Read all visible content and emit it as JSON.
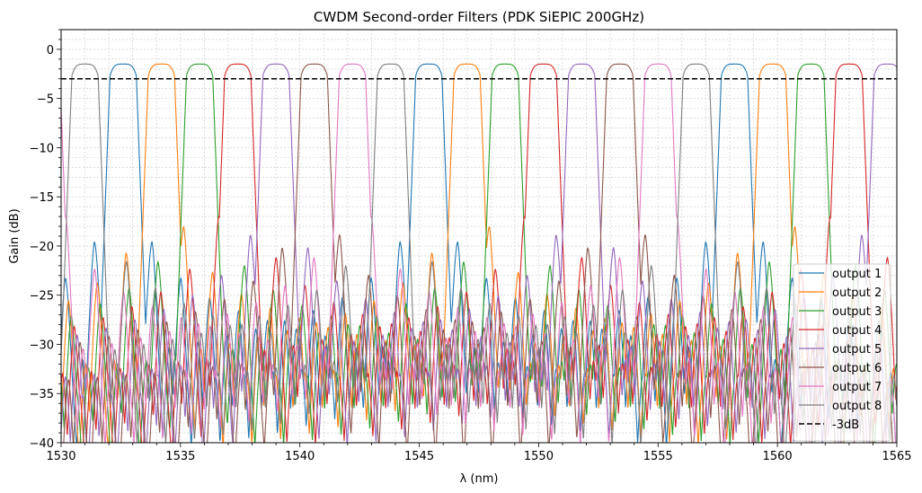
{
  "chart_data": {
    "type": "line",
    "title": "CWDM Second-order Filters (PDK SiEPIC 200GHz)",
    "xlabel": "λ (nm)",
    "ylabel": "Gain (dB)",
    "xlim": [
      1530,
      1565
    ],
    "ylim": [
      -40,
      2
    ],
    "xticks": [
      1530,
      1535,
      1540,
      1545,
      1550,
      1555,
      1560,
      1565
    ],
    "yticks": [
      0,
      -5,
      -10,
      -15,
      -20,
      -25,
      -30,
      -35,
      -40
    ],
    "grid": true,
    "legend_position": "lower-right",
    "channel_spacing_nm": 1.6,
    "passband_peak_db": -1.5,
    "series": [
      {
        "name": "output 1",
        "color": "#1f77b4",
        "center_wavelengths_nm": [
          1532.6,
          1545.4,
          1558.2
        ]
      },
      {
        "name": "output 2",
        "color": "#ff7f0e",
        "center_wavelengths_nm": [
          1534.2,
          1547.0,
          1559.8
        ]
      },
      {
        "name": "output 3",
        "color": "#2ca02c",
        "center_wavelengths_nm": [
          1535.8,
          1548.6,
          1561.4
        ]
      },
      {
        "name": "output 4",
        "color": "#d62728",
        "center_wavelengths_nm": [
          1537.4,
          1550.2,
          1563.0
        ]
      },
      {
        "name": "output 5",
        "color": "#9467bd",
        "center_wavelengths_nm": [
          1539.0,
          1551.8,
          1564.6
        ]
      },
      {
        "name": "output 6",
        "color": "#8c564b",
        "center_wavelengths_nm": [
          1540.6,
          1553.4
        ]
      },
      {
        "name": "output 7",
        "color": "#e377c2",
        "center_wavelengths_nm": [
          1529.4,
          1542.2,
          1555.0
        ]
      },
      {
        "name": "output 8",
        "color": "#7f7f7f",
        "center_wavelengths_nm": [
          1531.0,
          1543.8,
          1556.6
        ]
      }
    ],
    "reference_lines": [
      {
        "name": "-3dB",
        "y": -3,
        "color": "#000000",
        "style": "dashed"
      }
    ]
  }
}
